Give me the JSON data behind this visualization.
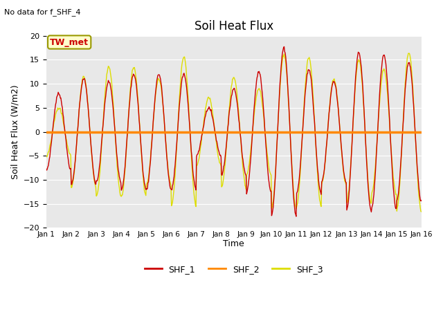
{
  "title": "Soil Heat Flux",
  "ylabel": "Soil Heat Flux (W/m2)",
  "xlabel": "Time",
  "note": "No data for f_SHF_4",
  "station_label": "TW_met",
  "ylim": [
    -20,
    20
  ],
  "yticks": [
    -20,
    -15,
    -10,
    -5,
    0,
    5,
    10,
    15,
    20
  ],
  "xtick_labels": [
    "Jan 1",
    "Jan 2",
    "Jan 3",
    "Jan 4",
    "Jan 5",
    "Jan 6",
    "Jan 7",
    "Jan 8",
    "Jan 9",
    "Jan 10",
    "Jan 11",
    "Jan 12",
    "Jan 13",
    "Jan 14",
    "Jan 15",
    "Jan 16"
  ],
  "colors": {
    "SHF_1": "#cc0000",
    "SHF_2": "#ff8800",
    "SHF_3": "#dddd00",
    "background": "#e8e8e8",
    "fig_bg": "#ffffff"
  },
  "legend": [
    {
      "label": "SHF_1",
      "color": "#cc0000"
    },
    {
      "label": "SHF_2",
      "color": "#ff8800"
    },
    {
      "label": "SHF_3",
      "color": "#dddd00"
    }
  ]
}
